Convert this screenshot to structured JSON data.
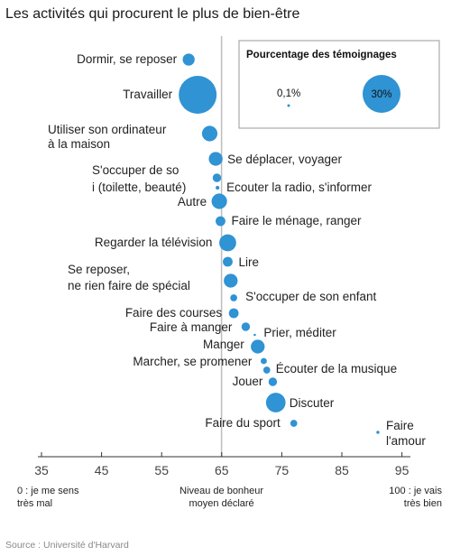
{
  "chart_data": {
    "type": "scatter",
    "title": "Les activités qui procurent le plus de bien-être",
    "xlabel": "Niveau de bonheur moyen déclaré",
    "xlim": [
      35,
      95
    ],
    "xticks": [
      "35",
      "45",
      "55",
      "65",
      "75",
      "85",
      "95"
    ],
    "reference_x": 65,
    "scale_notes": {
      "low": "0 : je me sens très mal",
      "high": "100 : je vais très bien"
    },
    "legend": {
      "title": "Pourcentage des témoignages",
      "min_label": "0,1%",
      "max_label": "30%"
    },
    "points": [
      {
        "label": "Dormir, se reposer",
        "x": 59.5,
        "share": 3
      },
      {
        "label": "Travailler",
        "x": 61,
        "share": 30
      },
      {
        "label": "Utiliser son ordinateur à la maison",
        "x": 63,
        "share": 5
      },
      {
        "label": "Se déplacer, voyager",
        "x": 64,
        "share": 4
      },
      {
        "label": "S'occuper de soi (toilette, beauté)",
        "x": 64.2,
        "share": 1.5
      },
      {
        "label": "Ecouter la radio, s'informer",
        "x": 64.3,
        "share": 0.3
      },
      {
        "label": "Autre",
        "x": 64.6,
        "share": 5
      },
      {
        "label": "Faire le ménage, ranger",
        "x": 64.8,
        "share": 2
      },
      {
        "label": "Regarder la télévision",
        "x": 66,
        "share": 6
      },
      {
        "label": "Lire",
        "x": 66,
        "share": 2
      },
      {
        "label": "Se reposer, ne rien faire de spécial",
        "x": 66.5,
        "share": 4
      },
      {
        "label": "S'occuper de son enfant",
        "x": 67,
        "share": 1
      },
      {
        "label": "Faire des courses",
        "x": 67,
        "share": 2
      },
      {
        "label": "Faire à manger",
        "x": 69,
        "share": 1.5
      },
      {
        "label": "Prier, méditer",
        "x": 70.5,
        "share": 0.1
      },
      {
        "label": "Manger",
        "x": 71,
        "share": 4
      },
      {
        "label": "Marcher, se promener",
        "x": 72,
        "share": 0.8
      },
      {
        "label": "Écouter de la musique",
        "x": 72.5,
        "share": 1
      },
      {
        "label": "Jouer",
        "x": 73.5,
        "share": 1.5
      },
      {
        "label": "Discuter",
        "x": 74,
        "share": 8
      },
      {
        "label": "Faire du sport",
        "x": 77,
        "share": 1
      },
      {
        "label": "Faire l'amour",
        "x": 91,
        "share": 0.2
      }
    ]
  },
  "source": "Source : Université d'Harvard"
}
